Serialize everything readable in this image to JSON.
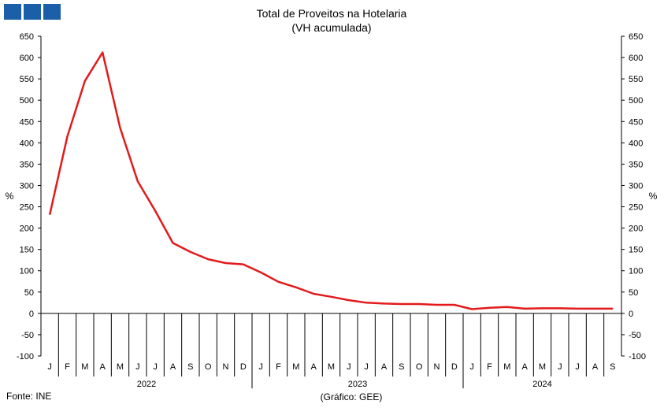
{
  "logo": {
    "blocks": 3,
    "color": "#1a5fa8"
  },
  "chart_data": {
    "type": "line",
    "title": "Total de Proveitos na Hotelaria",
    "subtitle": "(VH acumulada)",
    "ylabel_left": "%",
    "ylabel_right": "%",
    "ylim": [
      -100,
      650
    ],
    "yticks": [
      650,
      600,
      550,
      500,
      450,
      400,
      350,
      300,
      250,
      200,
      150,
      100,
      50,
      0,
      -50,
      -100
    ],
    "months": [
      "J",
      "F",
      "M",
      "A",
      "M",
      "J",
      "J",
      "A",
      "S",
      "O",
      "N",
      "D",
      "J",
      "F",
      "M",
      "A",
      "M",
      "J",
      "J",
      "A",
      "S",
      "O",
      "N",
      "D",
      "J",
      "F",
      "M",
      "A",
      "M",
      "J",
      "J",
      "A",
      "S"
    ],
    "years": [
      {
        "label": "2022",
        "start": 0,
        "count": 12
      },
      {
        "label": "2023",
        "start": 12,
        "count": 12
      },
      {
        "label": "2024",
        "start": 24,
        "count": 9
      }
    ],
    "series": [
      {
        "color": "#e31a1c",
        "values": [
          232,
          415,
          545,
          612,
          435,
          310,
          240,
          165,
          144,
          127,
          118,
          115,
          96,
          74,
          61,
          46,
          39,
          31,
          25,
          23,
          22,
          22,
          20,
          20,
          10,
          13,
          15,
          11,
          12,
          12,
          11,
          11,
          11
        ]
      }
    ],
    "grid": false
  },
  "footer": {
    "source": "Fonte: INE",
    "credit": "(Gráfico: GEE)"
  }
}
